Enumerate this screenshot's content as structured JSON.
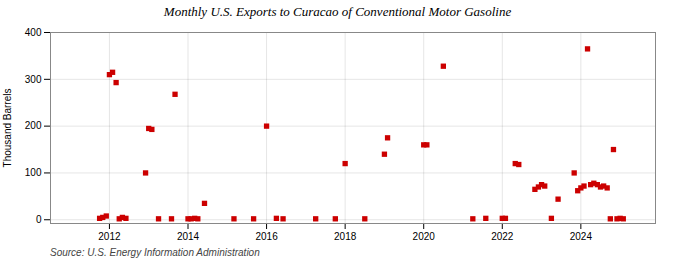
{
  "chart_data": {
    "type": "scatter",
    "title": "Monthly U.S. Exports to Curacao of Conventional Motor Gasoline",
    "ylabel": "Thousand Barrels",
    "source": "Source: U.S. Energy Information Administration",
    "color": "#cc0000",
    "marker": "square",
    "grid": true,
    "xlim": [
      2010.5,
      2025.9
    ],
    "xticks": [
      2012,
      2014,
      2016,
      2018,
      2020,
      2022,
      2024
    ],
    "ylim": [
      -8,
      400
    ],
    "yticks": [
      0,
      100,
      200,
      300,
      400
    ],
    "x": [
      2011.75,
      2011.83,
      2011.92,
      2012.0,
      2012.08,
      2012.17,
      2012.25,
      2012.33,
      2012.42,
      2012.92,
      2013.0,
      2013.08,
      2013.25,
      2013.58,
      2013.67,
      2014.0,
      2014.08,
      2014.17,
      2014.25,
      2014.42,
      2015.17,
      2015.67,
      2016.0,
      2016.25,
      2016.42,
      2017.25,
      2017.75,
      2018.0,
      2018.5,
      2019.0,
      2019.08,
      2020.0,
      2020.08,
      2020.5,
      2021.25,
      2021.58,
      2022.0,
      2022.08,
      2022.33,
      2022.42,
      2022.83,
      2022.92,
      2023.0,
      2023.08,
      2023.25,
      2023.42,
      2023.83,
      2023.92,
      2024.0,
      2024.08,
      2024.17,
      2024.25,
      2024.33,
      2024.42,
      2024.5,
      2024.58,
      2024.67,
      2024.75,
      2024.83,
      2024.92,
      2025.0,
      2025.08
    ],
    "values": [
      3,
      5,
      8,
      310,
      315,
      293,
      2,
      5,
      3,
      100,
      195,
      193,
      2,
      2,
      268,
      2,
      2,
      3,
      2,
      35,
      2,
      2,
      200,
      3,
      2,
      2,
      2,
      120,
      2,
      140,
      175,
      160,
      160,
      328,
      2,
      3,
      3,
      3,
      120,
      118,
      65,
      70,
      75,
      72,
      3,
      44,
      100,
      62,
      68,
      72,
      365,
      75,
      78,
      75,
      70,
      72,
      68,
      2,
      150,
      2,
      3,
      2
    ]
  }
}
